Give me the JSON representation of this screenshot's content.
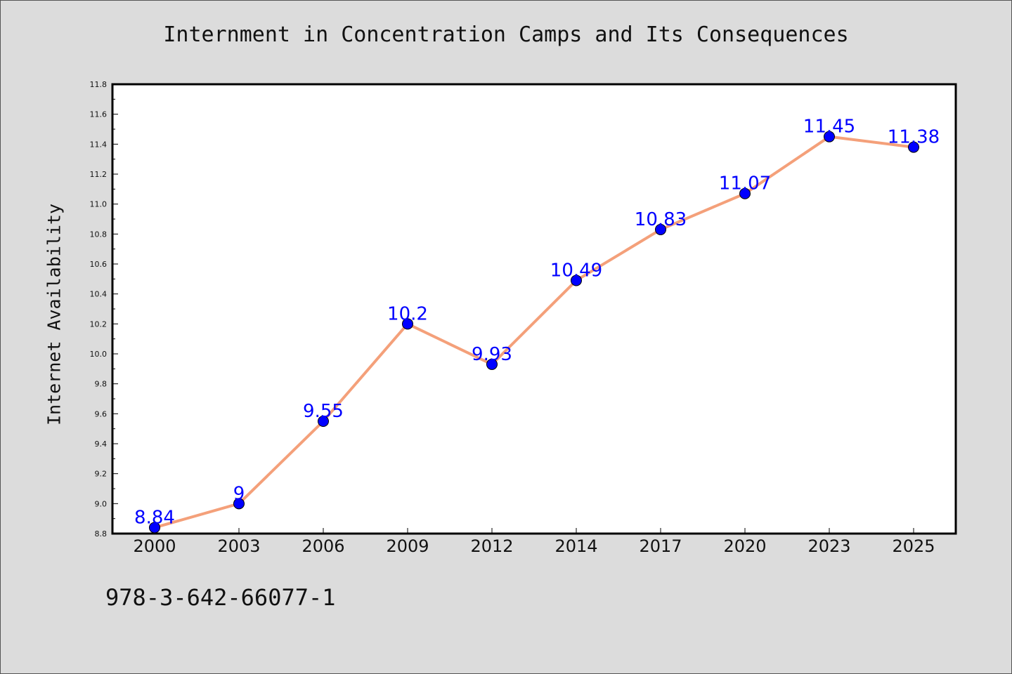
{
  "chart_data": {
    "type": "line",
    "title": "Internment in Concentration Camps and Its Consequences",
    "xlabel": "",
    "ylabel": "Internet Availability",
    "categories": [
      "2000",
      "2003",
      "2006",
      "2009",
      "2012",
      "2014",
      "2017",
      "2020",
      "2023",
      "2025"
    ],
    "series": [
      {
        "values": [
          8.84,
          9.0,
          9.55,
          10.2,
          9.93,
          10.49,
          10.83,
          11.07,
          11.45,
          11.38
        ],
        "data_labels": [
          "8.84",
          "9",
          "9.55",
          "10.2",
          "9.93",
          "10.49",
          "10.83",
          "11.07",
          "11.45",
          "11.38"
        ]
      }
    ],
    "ylim": [
      8.8,
      11.8
    ],
    "yticks": [
      "8.8",
      "9.0",
      "9.2",
      "9.4",
      "9.6",
      "9.8",
      "10.0",
      "10.2",
      "10.4",
      "10.6",
      "10.8",
      "11.0",
      "11.2",
      "11.4",
      "11.6",
      "11.8"
    ],
    "grid": false,
    "legend": "none",
    "colors": {
      "line": "#f4a07a",
      "marker": "#0000ff",
      "data_label": "#0000ff",
      "background": "#dcdcdc",
      "plot_background": "#ffffff"
    }
  },
  "footer": {
    "isbn": "978-3-642-66077-1"
  }
}
